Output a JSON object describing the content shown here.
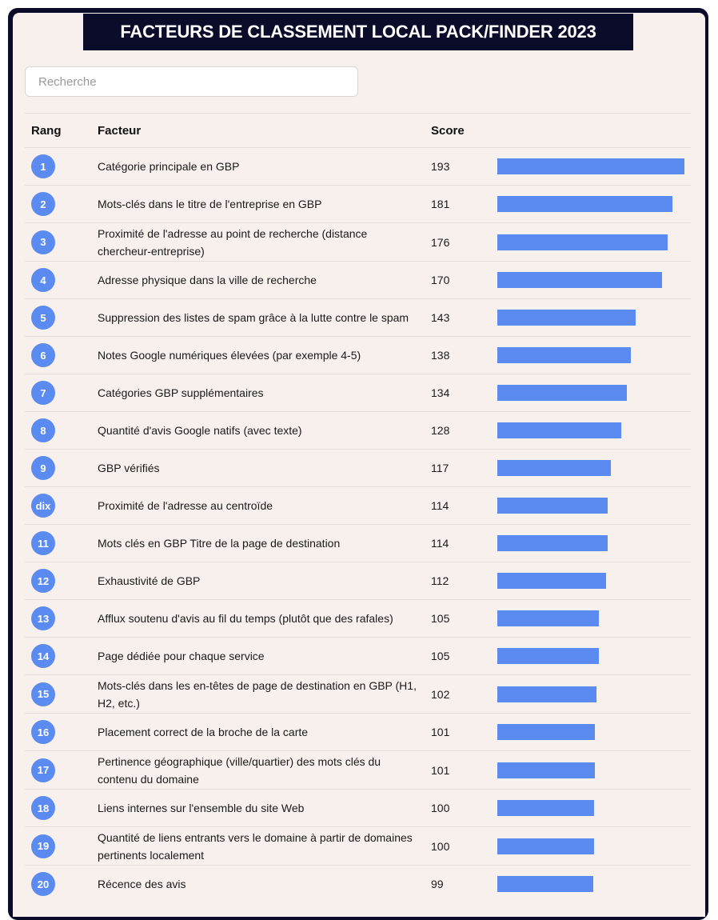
{
  "title": "FACTEURS DE CLASSEMENT LOCAL PACK/FINDER 2023",
  "search": {
    "placeholder": "Recherche",
    "value": ""
  },
  "headers": {
    "rank": "Rang",
    "factor": "Facteur",
    "score": "Score"
  },
  "bar_color": "#5b8bf0",
  "max_score": 193,
  "rows": [
    {
      "rank": "1",
      "factor": "Catégorie principale en GBP",
      "score": 193
    },
    {
      "rank": "2",
      "factor": "Mots-clés dans le titre de l'entreprise en GBP",
      "score": 181
    },
    {
      "rank": "3",
      "factor": "Proximité de l'adresse au point de recherche (distance chercheur-entreprise)",
      "score": 176
    },
    {
      "rank": "4",
      "factor": "Adresse physique dans la ville de recherche",
      "score": 170
    },
    {
      "rank": "5",
      "factor": "Suppression des listes de spam grâce à la lutte contre le spam",
      "score": 143
    },
    {
      "rank": "6",
      "factor": "Notes Google numériques élevées (par exemple 4-5)",
      "score": 138
    },
    {
      "rank": "7",
      "factor": "Catégories GBP supplémentaires",
      "score": 134
    },
    {
      "rank": "8",
      "factor": "Quantité d'avis Google natifs (avec texte)",
      "score": 128
    },
    {
      "rank": "9",
      "factor": "GBP vérifiés",
      "score": 117
    },
    {
      "rank": "dix",
      "factor": "Proximité de l'adresse au centroïde",
      "score": 114
    },
    {
      "rank": "11",
      "factor": "Mots clés en GBP Titre de la page de destination",
      "score": 114
    },
    {
      "rank": "12",
      "factor": "Exhaustivité de GBP",
      "score": 112
    },
    {
      "rank": "13",
      "factor": "Afflux soutenu d'avis au fil du temps (plutôt que des rafales)",
      "score": 105
    },
    {
      "rank": "14",
      "factor": "Page dédiée pour chaque service",
      "score": 105
    },
    {
      "rank": "15",
      "factor": "Mots-clés dans les en-têtes de page de destination en GBP (H1, H2, etc.)",
      "score": 102
    },
    {
      "rank": "16",
      "factor": "Placement correct de la broche de la carte",
      "score": 101
    },
    {
      "rank": "17",
      "factor": "Pertinence géographique (ville/quartier) des mots clés du contenu du domaine",
      "score": 101
    },
    {
      "rank": "18",
      "factor": "Liens internes sur l'ensemble du site Web",
      "score": 100
    },
    {
      "rank": "19",
      "factor": "Quantité de liens entrants vers le domaine à partir de domaines pertinents localement",
      "score": 100
    },
    {
      "rank": "20",
      "factor": "Récence des avis",
      "score": 99
    }
  ]
}
